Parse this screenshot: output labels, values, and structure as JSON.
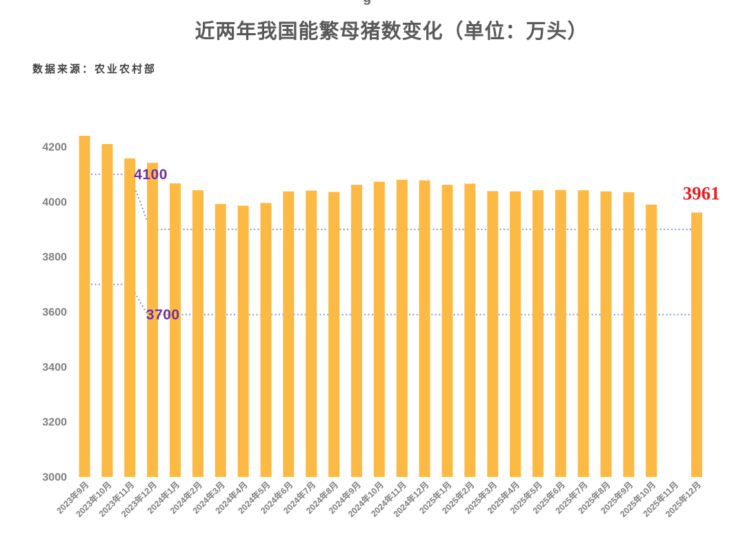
{
  "page": {
    "cropped_fragment": "g"
  },
  "title": "近两年我国能繁母猪数变化（单位：万头）",
  "source": "数据来源：农业农村部",
  "chart_data": {
    "type": "bar",
    "title": "近两年我国能繁母猪数变化（单位：万头）",
    "source": "数据来源：农业农村部",
    "unit": "万头",
    "categories": [
      "2023年9月",
      "2023年10月",
      "2023年11月",
      "2023年12月",
      "2024年1月",
      "2024年2月",
      "2024年3月",
      "2024年4月",
      "2024年5月",
      "2024年6月",
      "2024年7月",
      "2024年8月",
      "2024年9月",
      "2024年10月",
      "2024年11月",
      "2024年12月",
      "2025年1月",
      "2025年2月",
      "2025年3月",
      "2025年4月",
      "2025年5月",
      "2025年6月",
      "2025年7月",
      "2025年8月",
      "2025年9月",
      "2025年10月",
      "2025年11月",
      "2025年12月"
    ],
    "values": [
      4240,
      4210,
      4158,
      4142,
      4067,
      4042,
      3992,
      3986,
      3996,
      4038,
      4041,
      4036,
      4062,
      4073,
      4080,
      4078,
      4062,
      4066,
      4039,
      4038,
      4042,
      4043,
      4042,
      4038,
      4035,
      3990,
      null,
      3961
    ],
    "ylim": [
      3000,
      4280
    ],
    "yticks": [
      3000,
      3200,
      3400,
      3600,
      3800,
      4000,
      4200
    ],
    "grid": false,
    "legend": null,
    "bar_color": "#FCBA45",
    "guide_color": "#5B87CE",
    "guide_lines": [
      {
        "name": "upper-target-4100-to-3900",
        "points": [
          [
            -0.2,
            4100
          ],
          [
            2.0,
            4100
          ],
          [
            2.9,
            3900
          ],
          [
            26.85,
            3900
          ]
        ]
      },
      {
        "name": "lower-target-3700-to-3590",
        "points": [
          [
            -0.2,
            3700
          ],
          [
            2.0,
            3700
          ],
          [
            2.78,
            3590
          ],
          [
            26.85,
            3590
          ]
        ]
      }
    ],
    "annotations": [
      {
        "text": "4100",
        "color": "#7030A0",
        "family": "sans",
        "size": 21,
        "weight": "bold",
        "anchor": "start",
        "xi": 2.18,
        "value": 4100,
        "dy": 7
      },
      {
        "text": "3700",
        "color": "#7030A0",
        "family": "sans",
        "size": 21,
        "weight": "bold",
        "anchor": "start",
        "xi": 2.72,
        "value": 3590,
        "dy": 7
      },
      {
        "text": "3961",
        "color": "#ED1C24",
        "family": "serif",
        "size": 27,
        "weight": "bold",
        "anchor": "middle",
        "xi": 27.2,
        "value": 3961,
        "dy": -19
      }
    ]
  }
}
